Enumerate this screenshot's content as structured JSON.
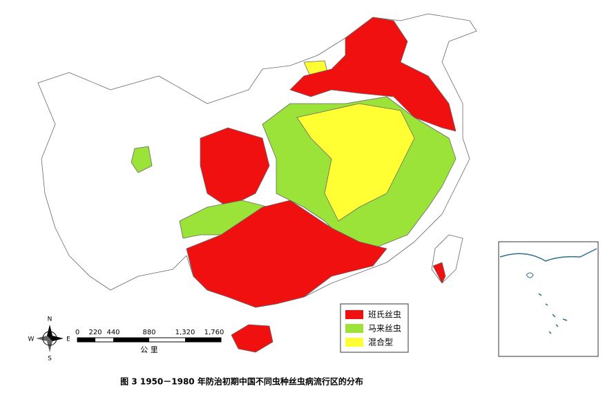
{
  "map": {
    "legend": {
      "items": [
        "班氏丝虫",
        "马来丝虫",
        "混合型"
      ]
    },
    "compass": {
      "north": "N",
      "east": "E",
      "south": "S",
      "west": "W"
    },
    "scale_bar": {
      "labels": [
        "0",
        "220",
        "440",
        "880",
        "1,320",
        "1,760"
      ],
      "unit": "公  里"
    }
  },
  "caption": "图 3  1950－1980 年防治初期中国不同虫种丝虫病流行区的分布"
}
